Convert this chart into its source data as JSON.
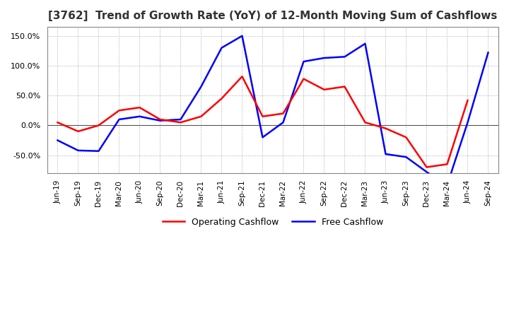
{
  "title": "[3762]  Trend of Growth Rate (YoY) of 12-Month Moving Sum of Cashflows",
  "title_fontsize": 11,
  "ylim": [
    -80,
    165
  ],
  "yticks": [
    -50.0,
    0.0,
    50.0,
    100.0,
    150.0
  ],
  "background_color": "#ffffff",
  "grid_color": "#aaaaaa",
  "legend_labels": [
    "Operating Cashflow",
    "Free Cashflow"
  ],
  "line_colors": [
    "#ff0000",
    "#0000ff"
  ],
  "x_labels": [
    "Jun-19",
    "Sep-19",
    "Dec-19",
    "Mar-20",
    "Jun-20",
    "Sep-20",
    "Dec-20",
    "Mar-21",
    "Jun-21",
    "Sep-21",
    "Dec-21",
    "Mar-22",
    "Jun-22",
    "Sep-22",
    "Dec-22",
    "Mar-23",
    "Jun-23",
    "Sep-23",
    "Dec-23",
    "Mar-24",
    "Jun-24",
    "Sep-24"
  ],
  "operating_cashflow": [
    5.0,
    -10.0,
    0.0,
    25.0,
    30.0,
    10.0,
    5.0,
    15.0,
    45.0,
    82.0,
    15.0,
    20.0,
    78.0,
    60.0,
    65.0,
    5.0,
    -5.0,
    -20.0,
    -70.0,
    -65.0,
    42.0,
    null
  ],
  "free_cashflow": [
    -25.0,
    -42.0,
    -43.0,
    10.0,
    15.0,
    8.0,
    10.0,
    65.0,
    130.0,
    150.0,
    -20.0,
    5.0,
    107.0,
    113.0,
    115.0,
    137.0,
    -48.0,
    -53.0,
    -78.0,
    -100.0,
    5.0,
    122.0
  ]
}
